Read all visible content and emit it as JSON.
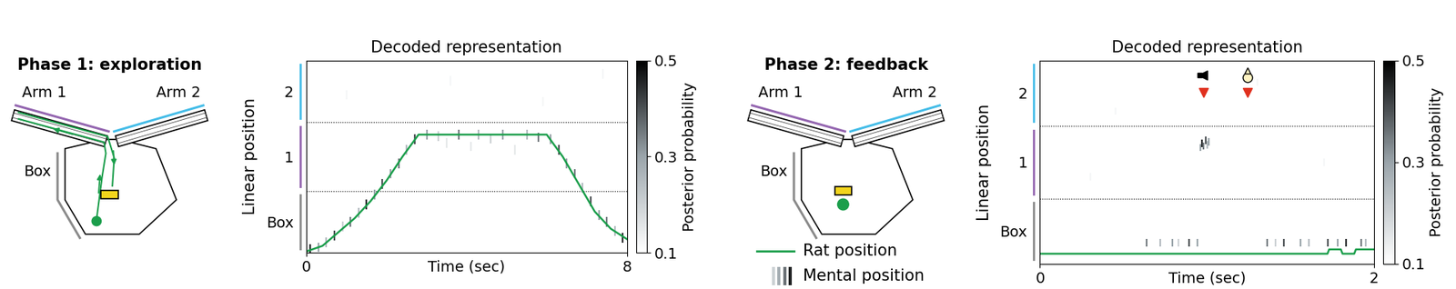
{
  "schematics": [
    {
      "title": "Phase 1: exploration",
      "arms": [
        "Arm 1",
        "Arm 2"
      ],
      "box": "Box"
    },
    {
      "title": "Phase 2: feedback",
      "arms": [
        "Arm 1",
        "Arm 2"
      ],
      "box": "Box"
    }
  ],
  "chart_data": [
    {
      "type": "decoding",
      "title": "Decoded representation",
      "x_label": "Time (sec)",
      "y_label": "Linear position",
      "xlim": [
        0,
        8
      ],
      "xticks": [
        0,
        8
      ],
      "segments": [
        {
          "label": "Box",
          "start": 0,
          "end": 0.9,
          "color": "#8a8a8a"
        },
        {
          "label": "1",
          "start": 0.9,
          "end": 1.9,
          "color": "#9466b0"
        },
        {
          "label": "2",
          "start": 1.9,
          "end": 2.8,
          "color": "#45bde8"
        }
      ],
      "rat_position": {
        "color": "#1b9e4b",
        "t": [
          0,
          0.4,
          0.8,
          1.2,
          1.6,
          2.0,
          2.4,
          2.8,
          6.0,
          6.4,
          6.8,
          7.2,
          7.6,
          8.0
        ],
        "values": [
          0.02,
          0.1,
          0.3,
          0.5,
          0.75,
          1.05,
          1.4,
          1.72,
          1.72,
          1.4,
          1.0,
          0.6,
          0.35,
          0.2
        ]
      },
      "mental_position": {
        "t": [
          0.1,
          0.3,
          0.5,
          0.7,
          0.9,
          1.1,
          1.3,
          1.5,
          1.7,
          1.9,
          2.1,
          2.3,
          2.5,
          2.7,
          3.0,
          3.3,
          3.5,
          3.8,
          4.1,
          4.3,
          4.6,
          4.9,
          5.2,
          5.5,
          5.8,
          6.1,
          6.3,
          6.5,
          6.7,
          6.9,
          7.1,
          7.3,
          7.5,
          7.7,
          7.9,
          1.0,
          3.6,
          5.9,
          7.4
        ],
        "position": [
          0.05,
          0.08,
          0.15,
          0.25,
          0.38,
          0.45,
          0.58,
          0.7,
          0.85,
          1.0,
          1.15,
          1.3,
          1.5,
          1.65,
          1.72,
          1.7,
          1.6,
          1.72,
          1.55,
          1.72,
          1.66,
          1.72,
          1.5,
          1.72,
          1.68,
          1.65,
          1.5,
          1.3,
          1.15,
          0.95,
          0.75,
          0.55,
          0.45,
          0.32,
          0.22,
          2.3,
          2.5,
          2.2,
          2.6
        ],
        "probability": [
          0.45,
          0.3,
          0.25,
          0.4,
          0.2,
          0.35,
          0.25,
          0.45,
          0.3,
          0.4,
          0.3,
          0.35,
          0.25,
          0.4,
          0.3,
          0.2,
          0.15,
          0.35,
          0.15,
          0.25,
          0.2,
          0.3,
          0.15,
          0.25,
          0.35,
          0.3,
          0.4,
          0.3,
          0.35,
          0.25,
          0.4,
          0.3,
          0.35,
          0.25,
          0.45,
          0.12,
          0.12,
          0.12,
          0.12
        ]
      },
      "colorbar": {
        "label": "Posterior probability",
        "range": [
          0.1,
          0.5
        ],
        "ticks": [
          0.1,
          0.3,
          0.5
        ]
      }
    },
    {
      "type": "decoding",
      "title": "Decoded representation",
      "x_label": "Time (sec)",
      "y_label": "Linear position",
      "xlim": [
        0,
        2
      ],
      "xticks": [
        0,
        2
      ],
      "segments": [
        {
          "label": "Box",
          "start": 0,
          "end": 0.9,
          "color": "#8a8a8a"
        },
        {
          "label": "1",
          "start": 0.9,
          "end": 1.9,
          "color": "#9466b0"
        },
        {
          "label": "2",
          "start": 1.9,
          "end": 2.8,
          "color": "#45bde8"
        }
      ],
      "rat_position": {
        "name": "Rat position",
        "color": "#1b9e4b",
        "t": [
          0,
          1.72,
          1.73,
          1.8,
          1.81,
          1.88,
          1.89,
          2.0
        ],
        "values": [
          0.14,
          0.14,
          0.2,
          0.2,
          0.14,
          0.14,
          0.2,
          0.2
        ]
      },
      "mental_position": {
        "name": "Mental position",
        "t": [
          0.64,
          0.72,
          0.79,
          0.83,
          0.89,
          0.94,
          1.36,
          1.41,
          1.46,
          1.56,
          1.61,
          1.72,
          1.78,
          1.83,
          1.92,
          1.95,
          0.96,
          0.97,
          0.98,
          0.99,
          1.0,
          1.01,
          0.3,
          0.45,
          1.3,
          1.7
        ],
        "position": [
          0.29,
          0.29,
          0.29,
          0.29,
          0.29,
          0.29,
          0.29,
          0.29,
          0.29,
          0.29,
          0.29,
          0.29,
          0.29,
          0.29,
          0.29,
          0.29,
          1.6,
          1.66,
          1.62,
          1.7,
          1.64,
          1.68,
          1.2,
          2.1,
          2.5,
          1.4
        ],
        "probability": [
          0.35,
          0.25,
          0.3,
          0.2,
          0.4,
          0.3,
          0.35,
          0.2,
          0.4,
          0.3,
          0.25,
          0.4,
          0.3,
          0.45,
          0.35,
          0.25,
          0.3,
          0.45,
          0.35,
          0.4,
          0.25,
          0.3,
          0.12,
          0.12,
          0.12,
          0.12
        ]
      },
      "event_times": [
        0.98,
        1.24
      ],
      "colorbar": {
        "label": "Posterior probability",
        "range": [
          0.1,
          0.5
        ],
        "ticks": [
          0.1,
          0.3,
          0.5
        ]
      }
    }
  ]
}
